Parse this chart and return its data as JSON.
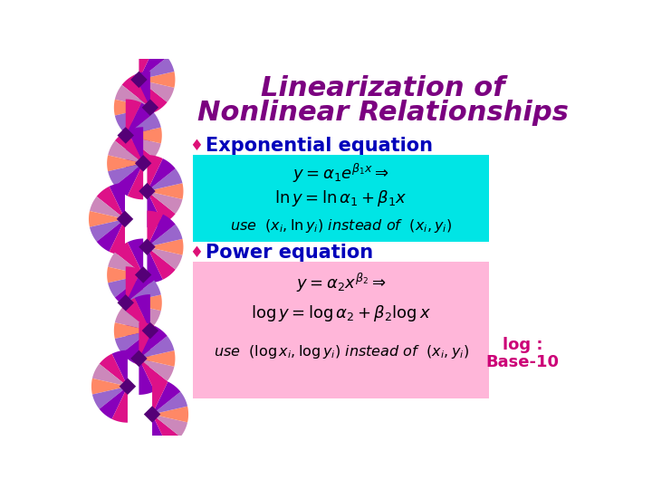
{
  "title_line1": "Linearization of",
  "title_line2": "Nonlinear Relationships",
  "title_color": "#7B0080",
  "title_fontsize": 22,
  "bullet_color": "#DD1177",
  "bullet1_text": "Exponential equation",
  "bullet2_text": "Power equation",
  "bullet_fontsize": 15,
  "bullet_text_color": "#0000BB",
  "box1_color": "#00E5E5",
  "box2_color": "#FFB6D9",
  "log_note_line1": "log :",
  "log_note_line2": "Base-10",
  "log_note_color": "#CC0077",
  "background_color": "#FFFFFF",
  "fan_colors": [
    "#8800BB",
    "#DD1188",
    "#CC88BB",
    "#FF8866",
    "#9966CC"
  ],
  "diamond_color": "#550077"
}
